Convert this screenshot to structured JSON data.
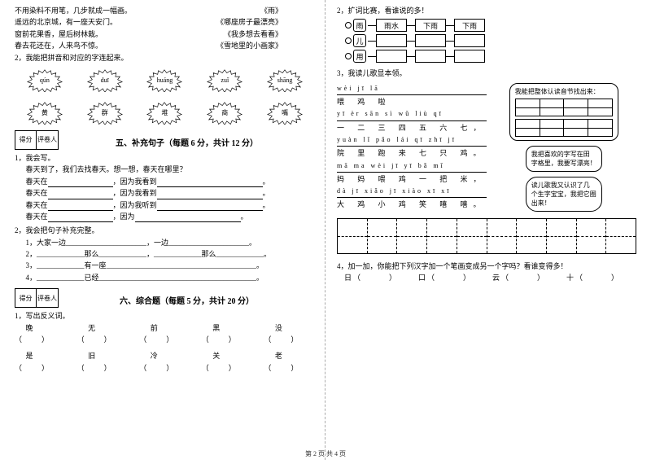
{
  "left": {
    "poems": [
      {
        "l": "不用染料不用笔，几步就成一幅画。",
        "r": "《雨》"
      },
      {
        "l": "遥远的北京城，有一座天安门。",
        "r": "《哪座房子最漂亮》"
      },
      {
        "l": "窗前花果香，屋后树林栽。",
        "r": "《我多想去看看》"
      },
      {
        "l": "春去花还在，人来鸟不惊。",
        "r": "《雪地里的小画家》"
      }
    ],
    "q2": "2，我能把拼音和对应的字连起来。",
    "pinyin": [
      "qún",
      "duī",
      "huáng",
      "zuǐ",
      "shāng"
    ],
    "chars": [
      "黄",
      "群",
      "堆",
      "商",
      "嘴"
    ],
    "sec5": "五、补充句子（每题 6 分，共计 12 分）",
    "scoreLabels": [
      "得分",
      "评卷人"
    ],
    "q5_1": "1，我会写。",
    "q5_1_intro": "春天到了，我们去找春天。想一想，春天在哪里？",
    "q5_1_lines": [
      {
        "a": "春天在",
        "b": "，因为我看到",
        "c": "。"
      },
      {
        "a": "春天在",
        "b": "，因为我看到",
        "c": "。"
      },
      {
        "a": "春天在",
        "b": "，因为我听到",
        "c": "。"
      },
      {
        "a": "春天在",
        "b": "，因为",
        "c": "。"
      }
    ],
    "q5_2": "2，我会把句子补充完整。",
    "q5_2_lines": [
      "1，大家一边______________________，一边______________________。",
      "2，_____________那么_____________，_____________那么_____________。",
      "3，_____________有一座_________________________________________。",
      "4，_____________已经___________________________________________。"
    ],
    "sec6": "六、综合题（每题 5 分，共计 20 分）",
    "q6_1": "1，写出反义词。",
    "antonyms1": [
      "晚（　　）",
      "无（　　）",
      "前（　　）",
      "黑（　　）",
      "没（　　）"
    ],
    "antonyms2": [
      "是（　　）",
      "旧（　　）",
      "冷（　　）",
      "关（　　）",
      "老（　　）"
    ]
  },
  "right": {
    "q2": "2，扩词比赛，看谁说的多！",
    "chains": [
      {
        "char": "雨",
        "words": [
          "雨水",
          "下雨",
          "下雨"
        ]
      },
      {
        "char": "儿",
        "words": [
          "",
          "",
          ""
        ]
      },
      {
        "char": "用",
        "words": [
          "",
          "",
          ""
        ]
      }
    ],
    "q3": "3，我读儿歌显本领。",
    "song": [
      {
        "py": "wèi jī lā",
        "hz": "喂 鸡 啦"
      },
      {
        "py": "yī èr sān sì wǔ liù qī",
        "hz": "一 二 三 四 五 六 七，"
      },
      {
        "py": "yuàn lǐ pǎo lái qī zhī jī",
        "hz": "院 里 跑 来 七 只 鸡。"
      },
      {
        "py": "mā ma wèi jī yī bǎ mǐ",
        "hz": "妈 妈 喂 鸡 一 把 米，"
      },
      {
        "py": "dà jī xiǎo jī xiào xī xī",
        "hz": "大 鸡 小 鸡 笑 嘻 嘻。"
      }
    ],
    "bubble1": "我能把整体认读音节找出来：",
    "bubble2a": "我把喜欢的字写在田",
    "bubble2b": "字格里，我要写漂亮！",
    "bubble3a": "读儿歌我又认识了几",
    "bubble3b": "个生字宝宝，我把它圈",
    "bubble3c": "出来！",
    "q4": "4，加一加，你能把下列汉字加一个笔画变成另一个字吗？看谁变得多！",
    "q4chars": [
      "日（　　　）",
      "口（　　　）",
      "云（　　　）",
      "十（　　　）"
    ]
  },
  "footer": "第 2 页  共 4 页"
}
